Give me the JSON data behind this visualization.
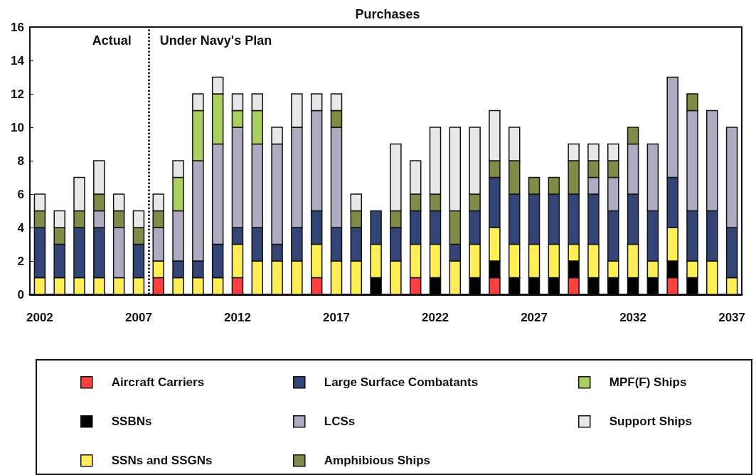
{
  "chart_data": {
    "type": "bar",
    "stacked": true,
    "title": "Purchases",
    "x": [
      2002,
      2003,
      2004,
      2005,
      2006,
      2007,
      2008,
      2009,
      2010,
      2011,
      2012,
      2013,
      2014,
      2015,
      2016,
      2017,
      2018,
      2019,
      2020,
      2021,
      2022,
      2023,
      2024,
      2025,
      2026,
      2027,
      2028,
      2029,
      2030,
      2031,
      2032,
      2033,
      2034,
      2035,
      2036,
      2037
    ],
    "xlim": [
      2001.5,
      2037.5
    ],
    "xticks": [
      2002,
      2007,
      2012,
      2017,
      2022,
      2027,
      2032,
      2037
    ],
    "ylim": [
      0,
      16
    ],
    "yticks": [
      0,
      2,
      4,
      6,
      8,
      10,
      12,
      14,
      16
    ],
    "grid": false,
    "legend": "bottom",
    "series": [
      {
        "name": "Aircraft Carriers",
        "color": "#ff4040",
        "values": [
          0,
          0,
          0,
          0,
          0,
          0,
          1,
          0,
          0,
          0,
          1,
          0,
          0,
          0,
          1,
          0,
          0,
          0,
          0,
          1,
          0,
          0,
          0,
          1,
          0,
          0,
          0,
          1,
          0,
          0,
          0,
          0,
          1,
          0,
          0,
          0
        ]
      },
      {
        "name": "SSBNs",
        "color": "#000000",
        "values": [
          0,
          0,
          0,
          0,
          0,
          0,
          0,
          0,
          0,
          0,
          0,
          0,
          0,
          0,
          0,
          0,
          0,
          1,
          0,
          0,
          1,
          0,
          1,
          1,
          1,
          1,
          1,
          1,
          1,
          1,
          1,
          1,
          1,
          1,
          0,
          0
        ]
      },
      {
        "name": "SSNs and SSGNs",
        "color": "#ffee55",
        "values": [
          1,
          1,
          1,
          1,
          1,
          1,
          1,
          1,
          1,
          1,
          2,
          2,
          2,
          2,
          2,
          2,
          2,
          2,
          2,
          2,
          2,
          2,
          2,
          2,
          2,
          2,
          2,
          1,
          2,
          1,
          2,
          1,
          2,
          1,
          2,
          1
        ]
      },
      {
        "name": "Large Surface Combatants",
        "color": "#334477",
        "values": [
          3,
          2,
          3,
          3,
          0,
          2,
          0,
          1,
          1,
          2,
          1,
          2,
          1,
          2,
          2,
          2,
          2,
          2,
          2,
          2,
          2,
          1,
          2,
          3,
          3,
          3,
          3,
          3,
          3,
          3,
          3,
          3,
          3,
          3,
          3,
          3
        ]
      },
      {
        "name": "LCSs",
        "color": "#aeaac0",
        "values": [
          0,
          0,
          0,
          1,
          3,
          0,
          2,
          3,
          6,
          6,
          6,
          5,
          6,
          6,
          6,
          6,
          0,
          0,
          0,
          0,
          0,
          0,
          0,
          0,
          0,
          0,
          0,
          0,
          1,
          2,
          3,
          4,
          6,
          6,
          6,
          6
        ]
      },
      {
        "name": "Amphibious Ships",
        "color": "#808b48",
        "values": [
          1,
          1,
          1,
          1,
          1,
          1,
          1,
          0,
          0,
          0,
          0,
          0,
          0,
          0,
          0,
          1,
          1,
          0,
          1,
          1,
          1,
          2,
          1,
          1,
          2,
          1,
          1,
          2,
          1,
          1,
          1,
          0,
          0,
          1,
          0,
          0
        ]
      },
      {
        "name": "MPF(F) Ships",
        "color": "#aad060",
        "values": [
          0,
          0,
          0,
          0,
          0,
          0,
          0,
          2,
          3,
          3,
          1,
          2,
          0,
          0,
          0,
          0,
          0,
          0,
          0,
          0,
          0,
          0,
          0,
          0,
          0,
          0,
          0,
          0,
          0,
          0,
          0,
          0,
          0,
          0,
          0,
          0
        ]
      },
      {
        "name": "Support Ships",
        "color": "#e8e8e8",
        "values": [
          1,
          1,
          2,
          2,
          1,
          1,
          1,
          1,
          1,
          1,
          1,
          1,
          1,
          2,
          1,
          1,
          1,
          0,
          4,
          2,
          4,
          5,
          4,
          3,
          2,
          0,
          0,
          1,
          1,
          1,
          0,
          0,
          0,
          0,
          0,
          0
        ]
      }
    ],
    "ref_lines": [
      {
        "axis": "x",
        "value": 2007.5,
        "line_style": "dotted",
        "color": "#000000"
      }
    ],
    "annotations": [
      "Actual",
      "Under Navy's Plan"
    ]
  }
}
